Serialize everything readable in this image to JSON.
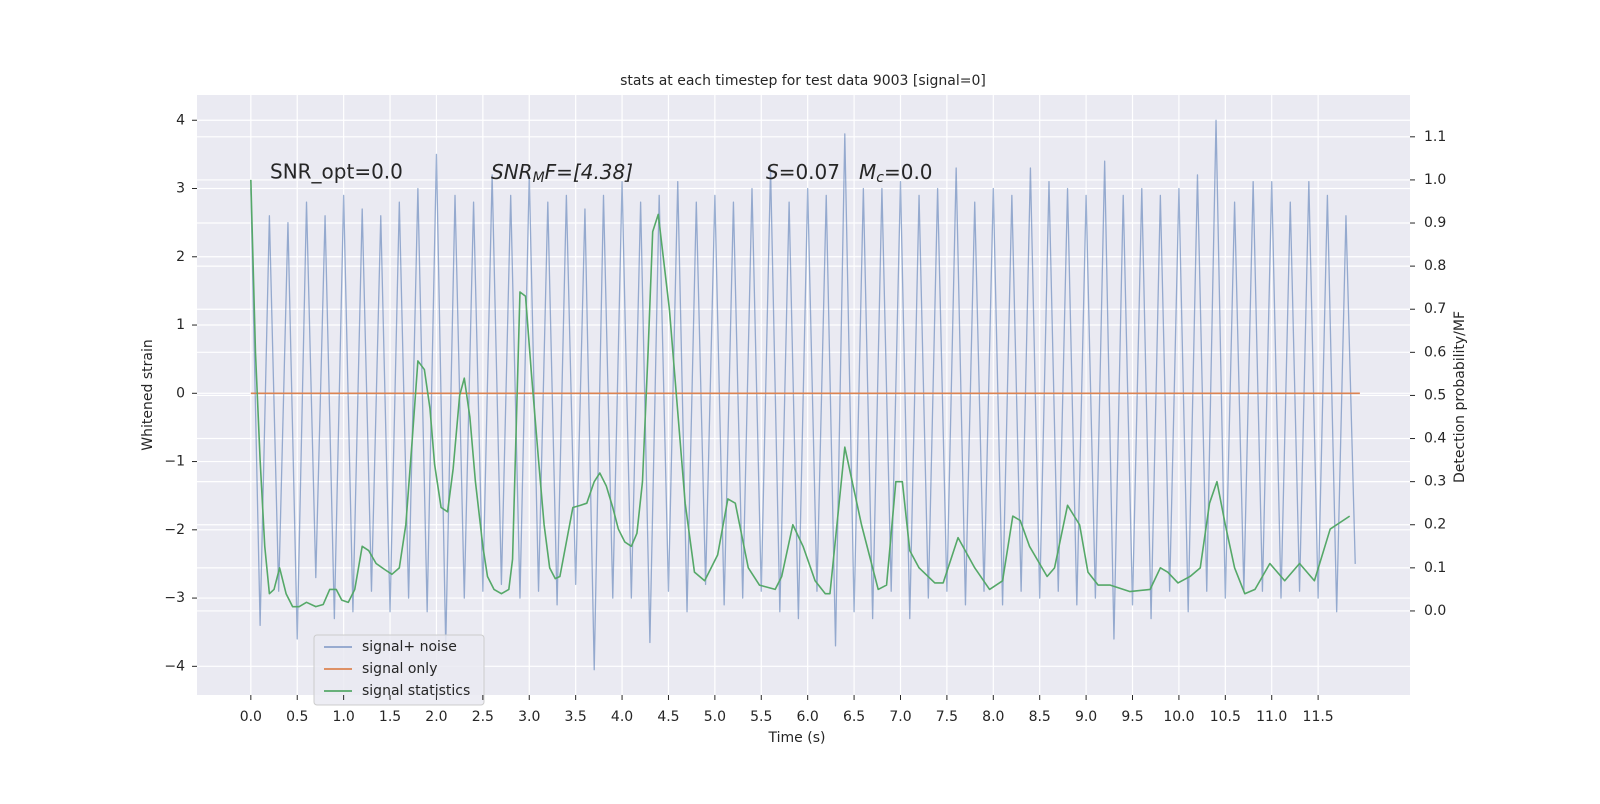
{
  "chart_data": {
    "type": "line",
    "title": "stats at each timestep for test data 9003 [signal=0]",
    "xlabel": "Time (s)",
    "ylabel": "Whitened strain",
    "y2label": "Detection probability/MF",
    "annotations": {
      "snr_opt": "SNR_opt=0.0",
      "snr_mf": {
        "base": "SNR",
        "sub": "M",
        "rest": "F=[4.38]"
      },
      "s": {
        "base": "S",
        "rest": "=0.07"
      },
      "mc": {
        "base": "M",
        "sub": "c",
        "rest": "=0.0"
      }
    },
    "xlim": [
      -0.58,
      12.49
    ],
    "ylim": [
      -4.42,
      4.37
    ],
    "y2lim": [
      -0.195,
      1.197
    ],
    "xticks": [
      {
        "value": 0,
        "label": "0.0"
      },
      0.5,
      {
        "value": 1,
        "label": "1.0"
      },
      1.5,
      {
        "value": 2,
        "label": "2.0"
      },
      2.5,
      {
        "value": 3,
        "label": "3.0"
      },
      3.5,
      {
        "value": 4,
        "label": "4.0"
      },
      4.5,
      {
        "value": 5,
        "label": "5.0"
      },
      5.5,
      {
        "value": 6,
        "label": "6.0"
      },
      6.5,
      {
        "value": 7,
        "label": "7.0"
      },
      7.5,
      {
        "value": 8,
        "label": "8.0"
      },
      8.5,
      {
        "value": 9,
        "label": "9.0"
      },
      9.5,
      {
        "value": 10,
        "label": "10.0"
      },
      10.5,
      {
        "value": 11,
        "label": "11.0"
      },
      11.5
    ],
    "yticks": [
      {
        "value": -4,
        "label": "−4"
      },
      {
        "value": -3,
        "label": "−3"
      },
      {
        "value": -2,
        "label": "−2"
      },
      {
        "value": -1,
        "label": "−1"
      },
      0,
      1,
      2,
      3,
      4
    ],
    "y2ticks": [
      {
        "value": 0,
        "label": "0.0"
      },
      0.1,
      0.2,
      0.3,
      0.4,
      0.5,
      0.6,
      0.7,
      0.8,
      0.9,
      {
        "value": 1,
        "label": "1.0"
      },
      1.1
    ],
    "grid": true,
    "legend_position": "lower left",
    "series": [
      {
        "name": "signal+ noise",
        "color": "#4c72b0",
        "x": [
          0,
          0.1,
          0.2,
          0.3,
          0.4,
          0.5,
          0.6,
          0.7,
          0.8,
          0.9,
          1,
          1.1,
          1.2,
          1.3,
          1.4,
          1.5,
          1.6,
          1.7,
          1.8,
          1.9,
          2,
          2.1,
          2.2,
          2.3,
          2.4,
          2.5,
          2.6,
          2.7,
          2.8,
          2.9,
          3,
          3.1,
          3.2,
          3.3,
          3.4,
          3.5,
          3.6,
          3.7,
          3.8,
          3.9,
          4,
          4.1,
          4.2,
          4.3,
          4.4,
          4.5,
          4.6,
          4.7,
          4.8,
          4.9,
          5,
          5.1,
          5.2,
          5.3,
          5.4,
          5.5,
          5.6,
          5.7,
          5.8,
          5.9,
          6,
          6.1,
          6.2,
          6.3,
          6.4,
          6.5,
          6.6,
          6.7,
          6.8,
          6.9,
          7,
          7.1,
          7.2,
          7.3,
          7.4,
          7.5,
          7.6,
          7.7,
          7.8,
          7.9,
          8,
          8.1,
          8.2,
          8.3,
          8.4,
          8.5,
          8.6,
          8.7,
          8.8,
          8.9,
          9,
          9.1,
          9.2,
          9.3,
          9.4,
          9.5,
          9.6,
          9.7,
          9.8,
          9.9,
          10,
          10.1,
          10.2,
          10.3,
          10.4,
          10.5,
          10.6,
          10.7,
          10.8,
          10.9,
          11,
          11.1,
          11.2,
          11.3,
          11.4,
          11.5,
          11.6,
          11.7,
          11.8,
          11.9
        ],
        "values": [
          3.0,
          -3.4,
          2.6,
          -2.9,
          2.5,
          -3.6,
          2.8,
          -2.7,
          2.6,
          -3.3,
          2.9,
          -3.2,
          2.7,
          -2.9,
          2.6,
          -3.2,
          2.8,
          -3.0,
          3.0,
          -3.2,
          3.5,
          -3.7,
          2.9,
          -3.0,
          2.8,
          -2.9,
          3.2,
          -2.8,
          2.9,
          -3.0,
          3.2,
          -2.9,
          2.8,
          -3.1,
          2.9,
          -2.8,
          2.7,
          -4.05,
          2.9,
          -3.0,
          3.1,
          -3.0,
          2.8,
          -3.65,
          2.9,
          -2.9,
          3.1,
          -3.2,
          2.8,
          -2.8,
          2.9,
          -3.1,
          2.8,
          -3.0,
          3.0,
          -2.9,
          3.3,
          -3.2,
          2.8,
          -3.3,
          3.0,
          -2.9,
          2.9,
          -3.7,
          3.8,
          -3.2,
          3.0,
          -3.3,
          3.0,
          -2.9,
          3.1,
          -3.3,
          2.9,
          -3.0,
          3.0,
          -2.9,
          3.3,
          -3.1,
          2.8,
          -2.9,
          3.0,
          -3.1,
          2.9,
          -2.9,
          3.3,
          -3.0,
          3.1,
          -2.9,
          3.0,
          -3.1,
          2.9,
          -3.0,
          3.4,
          -3.6,
          2.9,
          -3.1,
          3.0,
          -3.3,
          2.9,
          -2.9,
          3.0,
          -3.2,
          3.2,
          -2.9,
          4.0,
          -3.0,
          2.8,
          -2.9,
          3.1,
          -2.9,
          3.1,
          -3.0,
          2.8,
          -2.9,
          3.1,
          -3.0,
          2.9,
          -3.2,
          2.6,
          -2.5
        ]
      },
      {
        "name": "signal only",
        "color": "#dd8452",
        "x": [
          0,
          11.95
        ],
        "values": [
          0,
          0
        ]
      },
      {
        "name": "signal statistics",
        "color": "#55a868",
        "axis": "y2",
        "x": [
          0,
          0.05,
          0.1,
          0.15,
          0.2,
          0.25,
          0.31,
          0.38,
          0.45,
          0.52,
          0.6,
          0.7,
          0.78,
          0.85,
          0.92,
          0.98,
          1.05,
          1.12,
          1.2,
          1.27,
          1.35,
          1.45,
          1.52,
          1.6,
          1.67,
          1.74,
          1.8,
          1.87,
          1.93,
          1.98,
          2.05,
          2.12,
          2.18,
          2.25,
          2.3,
          2.36,
          2.42,
          2.5,
          2.55,
          2.62,
          2.7,
          2.78,
          2.82,
          2.9,
          2.96,
          3.02,
          3.1,
          3.16,
          3.22,
          3.28,
          3.33,
          3.4,
          3.47,
          3.55,
          3.62,
          3.7,
          3.76,
          3.83,
          3.9,
          3.96,
          4.03,
          4.1,
          4.16,
          4.22,
          4.28,
          4.33,
          4.39,
          4.51,
          4.68,
          4.78,
          4.89,
          5.03,
          5.14,
          5.22,
          5.36,
          5.48,
          5.65,
          5.72,
          5.84,
          5.95,
          6.08,
          6.19,
          6.24,
          6.4,
          6.58,
          6.76,
          6.85,
          6.95,
          7.02,
          7.1,
          7.2,
          7.37,
          7.46,
          7.62,
          7.8,
          7.96,
          8.1,
          8.21,
          8.29,
          8.39,
          8.58,
          8.66,
          8.8,
          8.93,
          9.02,
          9.13,
          9.26,
          9.47,
          9.69,
          9.8,
          9.88,
          9.99,
          10.12,
          10.23,
          10.33,
          10.41,
          10.5,
          10.6,
          10.71,
          10.82,
          10.98,
          11.14,
          11.3,
          11.46,
          11.63,
          11.84
        ],
        "values": [
          1.0,
          0.6,
          0.35,
          0.15,
          0.04,
          0.05,
          0.1,
          0.04,
          0.01,
          0.01,
          0.02,
          0.01,
          0.015,
          0.05,
          0.05,
          0.025,
          0.02,
          0.05,
          0.15,
          0.14,
          0.11,
          0.095,
          0.085,
          0.1,
          0.2,
          0.4,
          0.58,
          0.56,
          0.47,
          0.34,
          0.24,
          0.23,
          0.33,
          0.5,
          0.54,
          0.45,
          0.3,
          0.15,
          0.08,
          0.05,
          0.04,
          0.05,
          0.12,
          0.74,
          0.73,
          0.56,
          0.35,
          0.2,
          0.1,
          0.075,
          0.08,
          0.16,
          0.24,
          0.245,
          0.25,
          0.3,
          0.32,
          0.29,
          0.24,
          0.19,
          0.16,
          0.15,
          0.18,
          0.3,
          0.6,
          0.88,
          0.92,
          0.7,
          0.25,
          0.09,
          0.07,
          0.13,
          0.26,
          0.25,
          0.1,
          0.06,
          0.05,
          0.08,
          0.2,
          0.15,
          0.07,
          0.04,
          0.04,
          0.38,
          0.2,
          0.05,
          0.06,
          0.3,
          0.3,
          0.14,
          0.1,
          0.065,
          0.065,
          0.17,
          0.1,
          0.05,
          0.07,
          0.22,
          0.21,
          0.15,
          0.08,
          0.1,
          0.245,
          0.2,
          0.09,
          0.06,
          0.06,
          0.045,
          0.05,
          0.1,
          0.09,
          0.065,
          0.08,
          0.1,
          0.25,
          0.3,
          0.2,
          0.1,
          0.04,
          0.05,
          0.11,
          0.07,
          0.11,
          0.07,
          0.19,
          0.22
        ]
      }
    ]
  }
}
